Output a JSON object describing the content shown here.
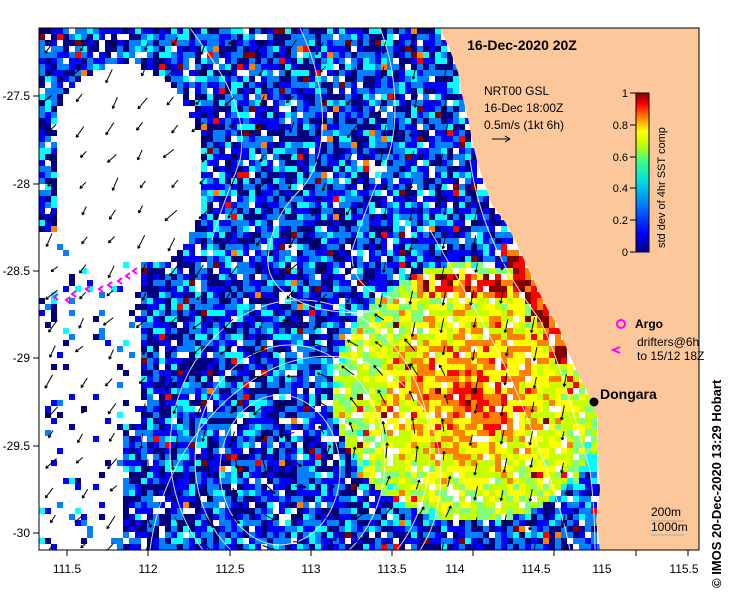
{
  "map": {
    "title": "16-Dec-2020 20Z",
    "wind_note": [
      "NRT00 GSL",
      "16-Dec 18:00Z",
      "0.5m/s (1kt 6h)"
    ],
    "colorbar": {
      "label": "std dev of 4hr SST comp",
      "ticks": [
        "1",
        "0.8",
        "0.6",
        "0.4",
        "0.2",
        "0"
      ],
      "colors": [
        "#00007f",
        "#0000ff",
        "#007fff",
        "#00ffff",
        "#7fff7f",
        "#c8ff00",
        "#ffff00",
        "#ff7f00",
        "#ff0000",
        "#7f0000"
      ]
    },
    "legend": {
      "argo": "Argo",
      "drifters_line1": "drifters@6h",
      "drifters_line2": "to 15/12 18Z"
    },
    "place": "Dongara",
    "contours": [
      "200m",
      "1000m"
    ],
    "credit": "© IMOS 20-Dec-2020 13:29 Hobart",
    "x_ticks": [
      "111.5",
      "112",
      "112.5",
      "113",
      "113.5",
      "114",
      "114.5",
      "115",
      "115.5"
    ],
    "y_ticks": [
      "-27.5",
      "-28",
      "-28.5",
      "-29",
      "-29.5",
      "-30"
    ],
    "colors": {
      "land": "#fcc89b",
      "argo": "#ff00ff"
    }
  }
}
